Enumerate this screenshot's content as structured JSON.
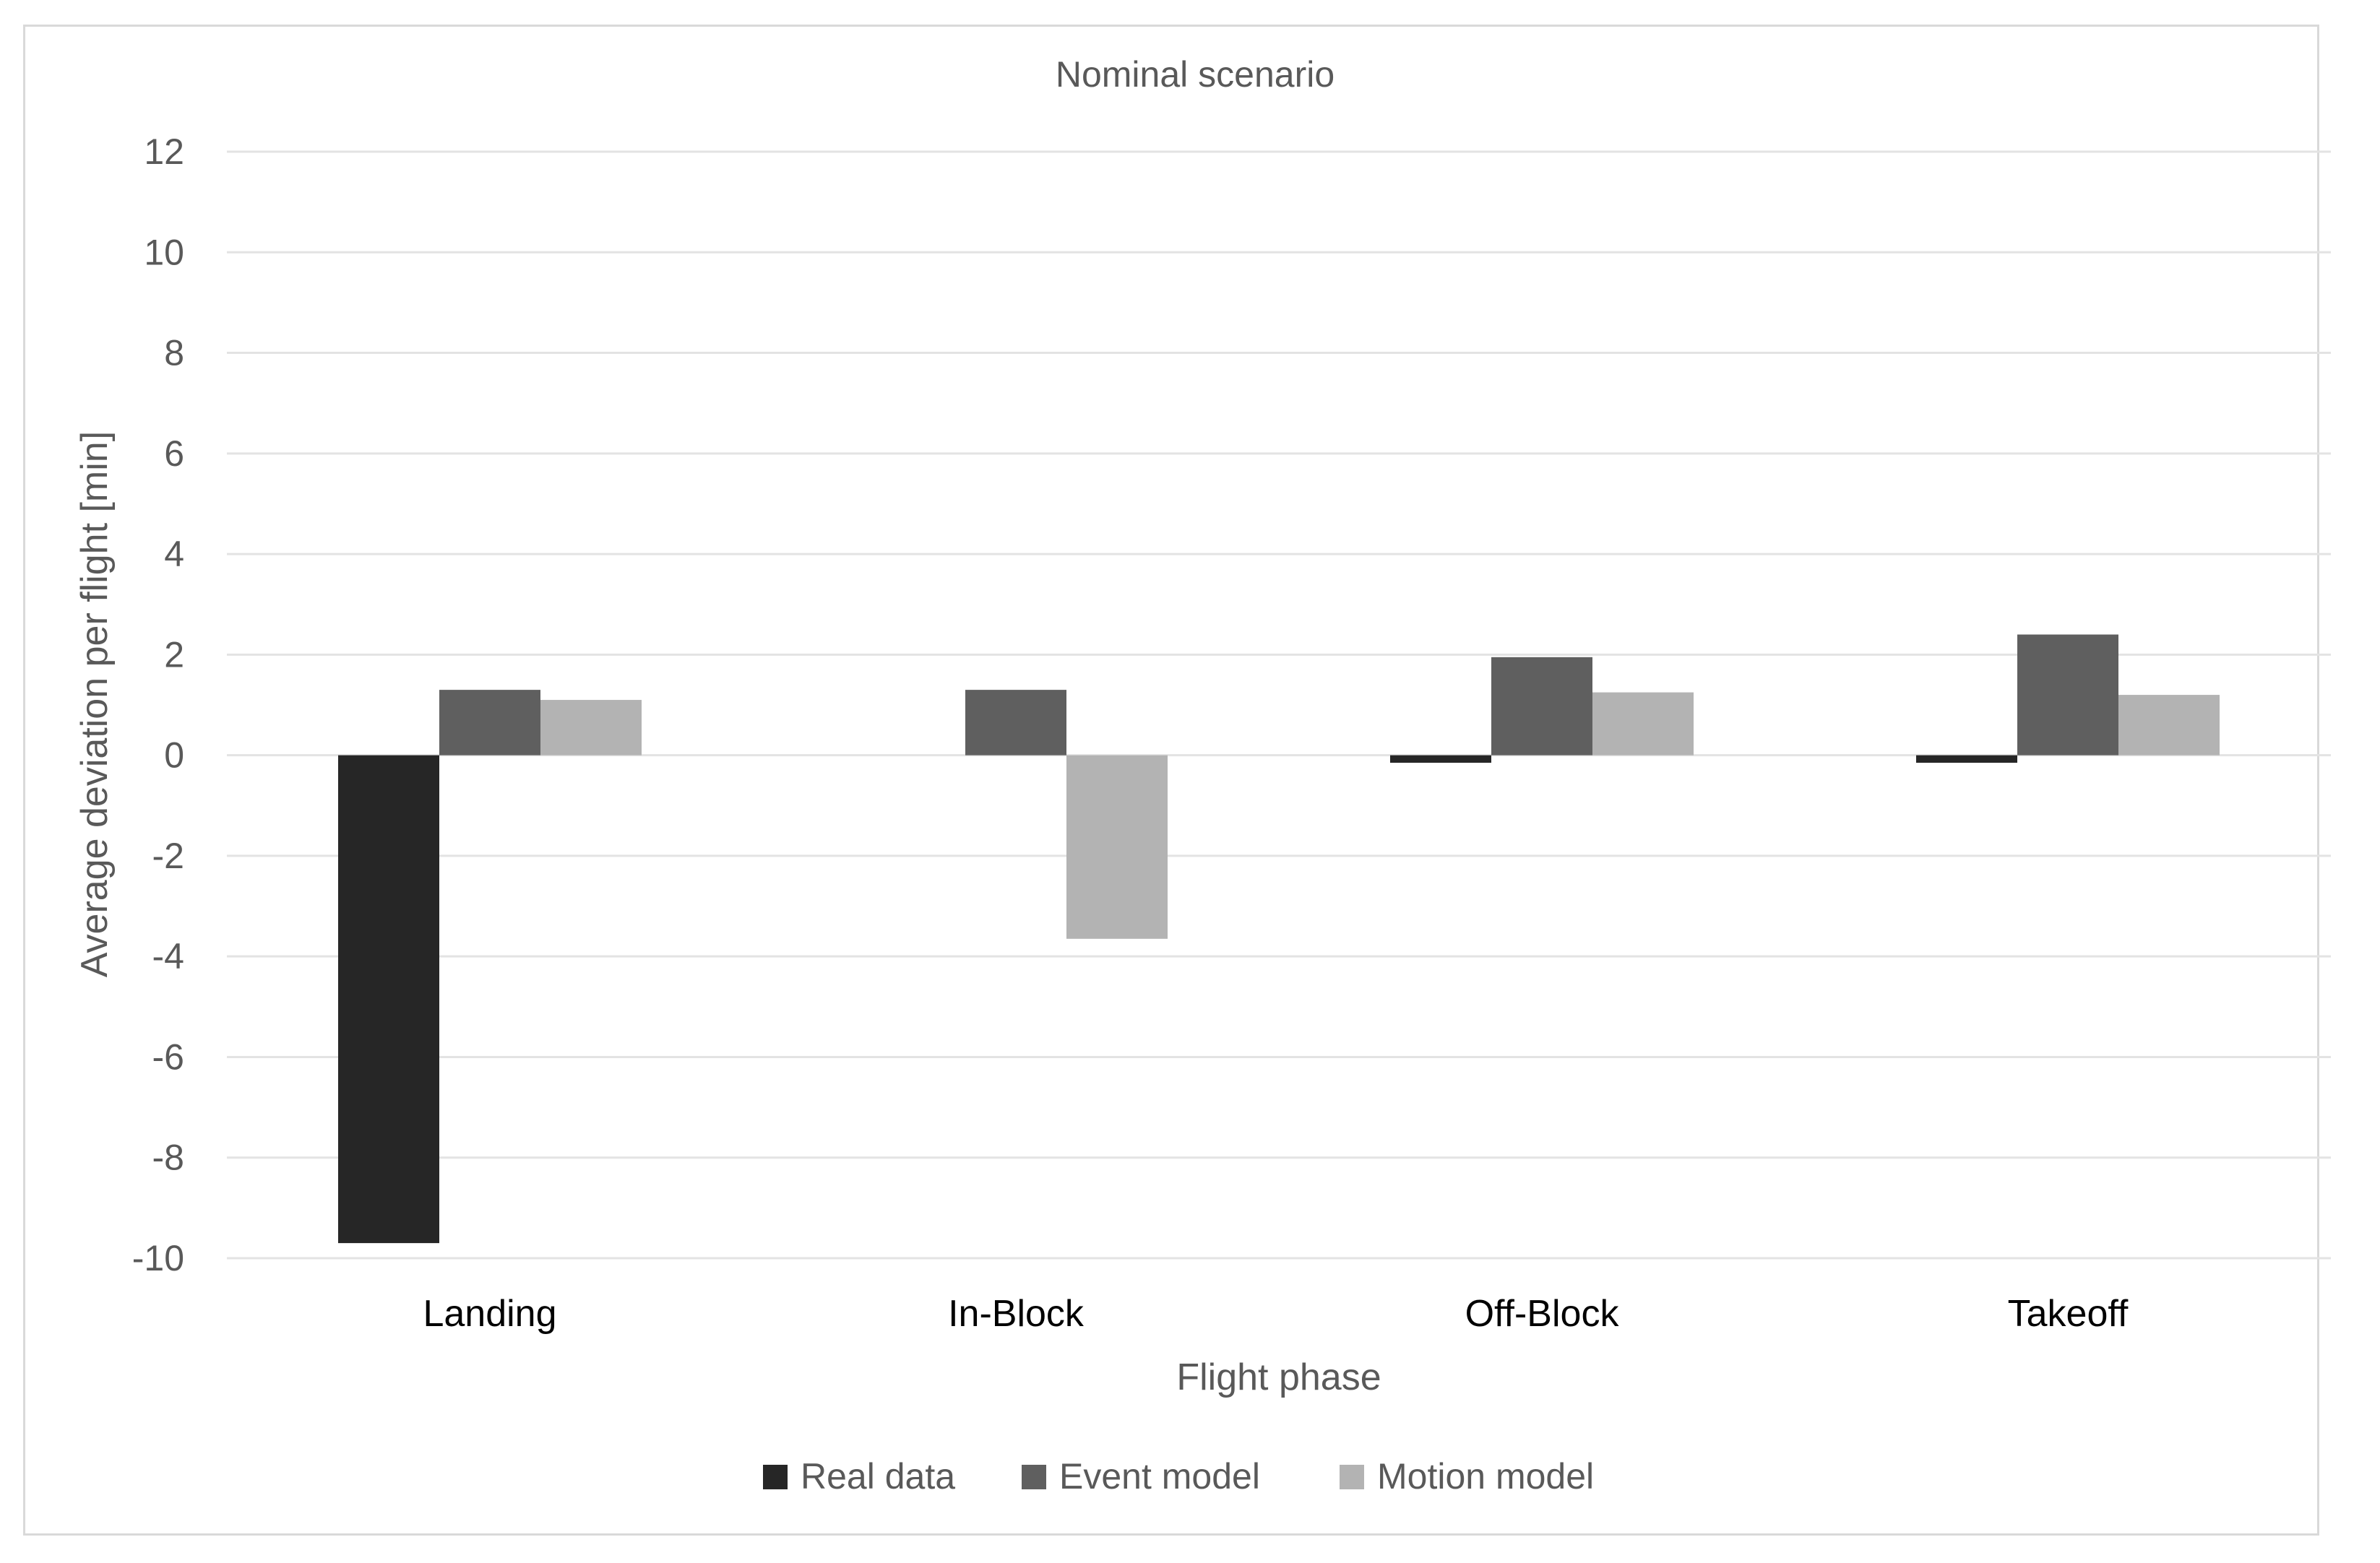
{
  "chart_data": {
    "type": "bar",
    "title": "Nominal scenario",
    "xlabel": "Flight phase",
    "ylabel": "Average deviation per flight [min]",
    "categories": [
      "Landing",
      "In-Block",
      "Off-Block",
      "Takeoff"
    ],
    "ylim": [
      -10,
      12
    ],
    "yticks": [
      12,
      10,
      8,
      6,
      4,
      2,
      0,
      -2,
      -4,
      -6,
      -8,
      -10
    ],
    "ytick_labels": [
      "12",
      "10",
      "8",
      "6",
      "4",
      "2",
      "0",
      "-2",
      "-4",
      "-6",
      "-8",
      "-10"
    ],
    "grid": true,
    "legend_position": "bottom",
    "series": [
      {
        "name": "Real data",
        "color": "#262626",
        "values": [
          -9.7,
          0,
          -0.15,
          -0.15
        ]
      },
      {
        "name": "Event model",
        "color": "#5f5f5f",
        "values": [
          1.3,
          1.3,
          1.95,
          2.4
        ]
      },
      {
        "name": "Motion model",
        "color": "#b3b3b3",
        "values": [
          1.1,
          -3.65,
          1.25,
          1.2
        ]
      }
    ]
  }
}
